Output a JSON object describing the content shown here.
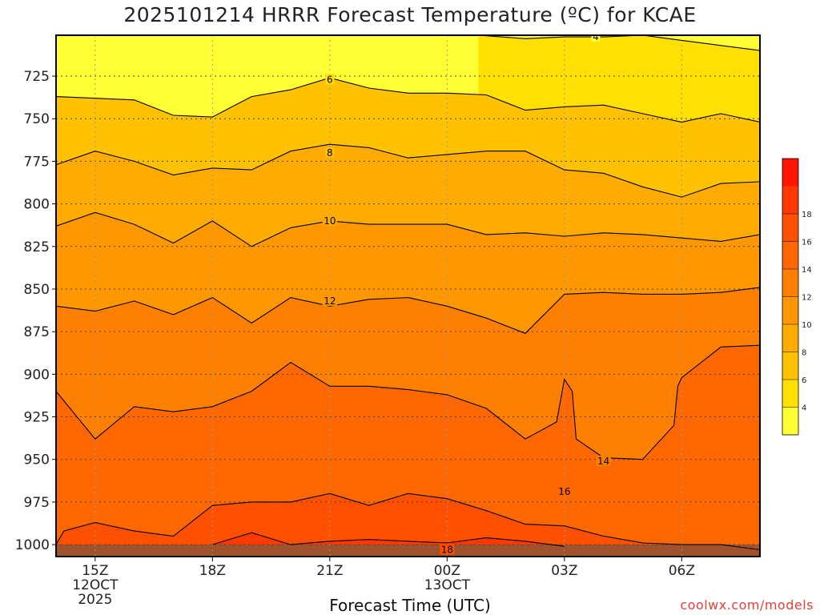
{
  "chart_data": {
    "type": "contour",
    "title": "2025101214 HRRR Forecast Temperature (ºC) for KCAE",
    "xlabel": "Forecast Time (UTC)",
    "credit": "coolwx.com/models",
    "y_axis": {
      "ticks": [
        725,
        750,
        775,
        800,
        825,
        850,
        875,
        900,
        925,
        950,
        975,
        1000
      ],
      "range": [
        1007,
        701
      ],
      "units": "hPa"
    },
    "x_axis": {
      "range_hours": [
        -1,
        17
      ],
      "ticks": [
        {
          "hour": 0,
          "lines": [
            "15Z",
            "12OCT",
            "2025"
          ]
        },
        {
          "hour": 3,
          "lines": [
            "18Z"
          ]
        },
        {
          "hour": 6,
          "lines": [
            "21Z"
          ]
        },
        {
          "hour": 9,
          "lines": [
            "00Z",
            "13OCT"
          ]
        },
        {
          "hour": 12,
          "lines": [
            "03Z"
          ]
        },
        {
          "hour": 15,
          "lines": [
            "06Z"
          ]
        }
      ]
    },
    "colorbar": {
      "levels": [
        4,
        6,
        8,
        10,
        12,
        14,
        16,
        18
      ],
      "colors": [
        "#ffff33",
        "#ffe000",
        "#ffc200",
        "#ffab00",
        "#ff9800",
        "#ff8000",
        "#ff6800",
        "#ff5000",
        "#ff3800",
        "#ff1500"
      ]
    },
    "contours": [
      {
        "level": 4,
        "label_at": [
          12.8,
          702
        ],
        "points": [
          [
            9.8,
            701
          ],
          [
            11,
            703
          ],
          [
            12,
            702
          ],
          [
            13,
            702
          ],
          [
            14,
            701
          ],
          [
            15,
            704
          ],
          [
            16,
            707
          ],
          [
            17,
            710
          ]
        ]
      },
      {
        "level": 6,
        "label_at": [
          6.0,
          727
        ],
        "points": [
          [
            -1,
            737
          ],
          [
            1,
            739
          ],
          [
            2,
            748
          ],
          [
            3,
            749
          ],
          [
            4,
            737
          ],
          [
            5,
            733
          ],
          [
            6,
            726
          ],
          [
            7,
            732
          ],
          [
            8,
            735
          ],
          [
            9,
            735
          ],
          [
            10,
            736
          ],
          [
            11,
            745
          ],
          [
            12,
            743
          ],
          [
            13,
            742
          ],
          [
            14,
            747
          ],
          [
            15,
            752
          ],
          [
            16,
            747
          ],
          [
            17,
            752
          ]
        ]
      },
      {
        "level": 8,
        "label_at": [
          6.0,
          770
        ],
        "points": [
          [
            -1,
            777
          ],
          [
            0,
            769
          ],
          [
            1,
            775
          ],
          [
            2,
            783
          ],
          [
            3,
            779
          ],
          [
            4,
            780
          ],
          [
            5,
            769
          ],
          [
            6,
            765
          ],
          [
            7,
            767
          ],
          [
            8,
            773
          ],
          [
            9,
            771
          ],
          [
            10,
            769
          ],
          [
            11,
            769
          ],
          [
            12,
            780
          ],
          [
            13,
            782
          ],
          [
            14,
            790
          ],
          [
            15,
            796
          ],
          [
            16,
            788
          ],
          [
            17,
            787
          ]
        ]
      },
      {
        "level": 10,
        "label_at": [
          6.0,
          810
        ],
        "points": [
          [
            -1,
            813
          ],
          [
            0,
            805
          ],
          [
            1,
            812
          ],
          [
            2,
            823
          ],
          [
            3,
            810
          ],
          [
            4,
            825
          ],
          [
            5,
            814
          ],
          [
            6,
            810
          ],
          [
            7,
            812
          ],
          [
            8,
            812
          ],
          [
            9,
            812
          ],
          [
            10,
            818
          ],
          [
            11,
            817
          ],
          [
            12,
            819
          ],
          [
            13,
            817
          ],
          [
            14,
            818
          ],
          [
            15,
            820
          ],
          [
            16,
            822
          ],
          [
            17,
            818
          ]
        ]
      },
      {
        "level": 12,
        "label_at": [
          6.0,
          857
        ],
        "points": [
          [
            -1,
            860
          ],
          [
            0,
            863
          ],
          [
            1,
            857
          ],
          [
            2,
            865
          ],
          [
            3,
            855
          ],
          [
            4,
            870
          ],
          [
            5,
            855
          ],
          [
            6,
            860
          ],
          [
            7,
            856
          ],
          [
            8,
            855
          ],
          [
            9,
            860
          ],
          [
            10,
            867
          ],
          [
            11,
            876
          ],
          [
            12,
            853
          ],
          [
            13,
            852
          ],
          [
            14,
            853
          ],
          [
            15,
            853
          ],
          [
            16,
            852
          ],
          [
            17,
            849
          ]
        ]
      },
      {
        "level": 14,
        "label_at": [
          13.0,
          951
        ],
        "points": [
          [
            -1,
            910
          ],
          [
            0,
            938
          ],
          [
            1,
            919
          ],
          [
            2,
            922
          ],
          [
            3,
            919
          ],
          [
            4,
            910
          ],
          [
            5,
            893
          ],
          [
            6,
            907
          ],
          [
            7,
            907
          ],
          [
            8,
            909
          ],
          [
            9,
            912
          ],
          [
            10,
            920
          ],
          [
            11,
            938
          ],
          [
            11.8,
            928
          ],
          [
            12,
            903
          ],
          [
            12.2,
            910
          ],
          [
            12.3,
            938
          ],
          [
            13,
            949
          ],
          [
            14,
            950
          ],
          [
            14.8,
            930
          ],
          [
            14.9,
            907
          ],
          [
            15,
            902
          ],
          [
            16,
            884
          ],
          [
            17,
            883
          ]
        ]
      },
      {
        "level": 16,
        "label_at": [
          12.0,
          969
        ],
        "points": [
          [
            -1,
            1000
          ],
          [
            -0.8,
            992
          ],
          [
            0,
            987
          ],
          [
            1,
            992
          ],
          [
            2,
            995
          ],
          [
            3,
            977
          ],
          [
            4,
            975
          ],
          [
            5,
            975
          ],
          [
            6,
            970
          ],
          [
            7,
            977
          ],
          [
            8,
            970
          ],
          [
            9,
            973
          ],
          [
            10,
            980
          ],
          [
            11,
            988
          ],
          [
            12,
            989
          ],
          [
            13,
            995
          ],
          [
            14,
            999
          ],
          [
            15,
            1000
          ],
          [
            16,
            1000
          ],
          [
            17,
            1003
          ]
        ]
      },
      {
        "level": 18,
        "label_at": [
          9.0,
          1003
        ],
        "points": [
          [
            3,
            1000
          ],
          [
            4,
            993
          ],
          [
            5,
            1000
          ],
          [
            6,
            998
          ],
          [
            7,
            997
          ],
          [
            8,
            998
          ],
          [
            9,
            999
          ],
          [
            10,
            996
          ],
          [
            11,
            998
          ],
          [
            12,
            1001
          ]
        ]
      }
    ]
  }
}
